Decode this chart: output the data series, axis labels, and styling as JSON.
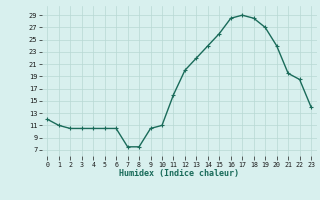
{
  "x": [
    0,
    1,
    2,
    3,
    4,
    5,
    6,
    7,
    8,
    9,
    10,
    11,
    12,
    13,
    14,
    15,
    16,
    17,
    18,
    19,
    20,
    21,
    22,
    23
  ],
  "y": [
    12,
    11,
    10.5,
    10.5,
    10.5,
    10.5,
    10.5,
    7.5,
    7.5,
    10.5,
    11,
    16,
    20,
    22,
    24,
    26,
    28.5,
    29,
    28.5,
    27,
    24,
    19.5,
    18.5,
    14
  ],
  "line_color": "#1a6b5a",
  "marker": "+",
  "marker_size": 3.5,
  "marker_lw": 0.8,
  "bg_color": "#d8f0ee",
  "grid_color": "#b8d8d4",
  "xlabel": "Humidex (Indice chaleur)",
  "xtick_labels": [
    "0",
    "1",
    "2",
    "3",
    "4",
    "5",
    "6",
    "7",
    "8",
    "9",
    "1011",
    "12",
    "13",
    "14",
    "15",
    "16",
    "17",
    "18",
    "19",
    "20",
    "21",
    "2223",
    ""
  ],
  "ylabel_ticks": [
    7,
    9,
    11,
    13,
    15,
    17,
    19,
    21,
    23,
    25,
    27,
    29
  ],
  "ylim": [
    6,
    30.5
  ],
  "xlim": [
    -0.5,
    23.5
  ],
  "linewidth": 1.0
}
